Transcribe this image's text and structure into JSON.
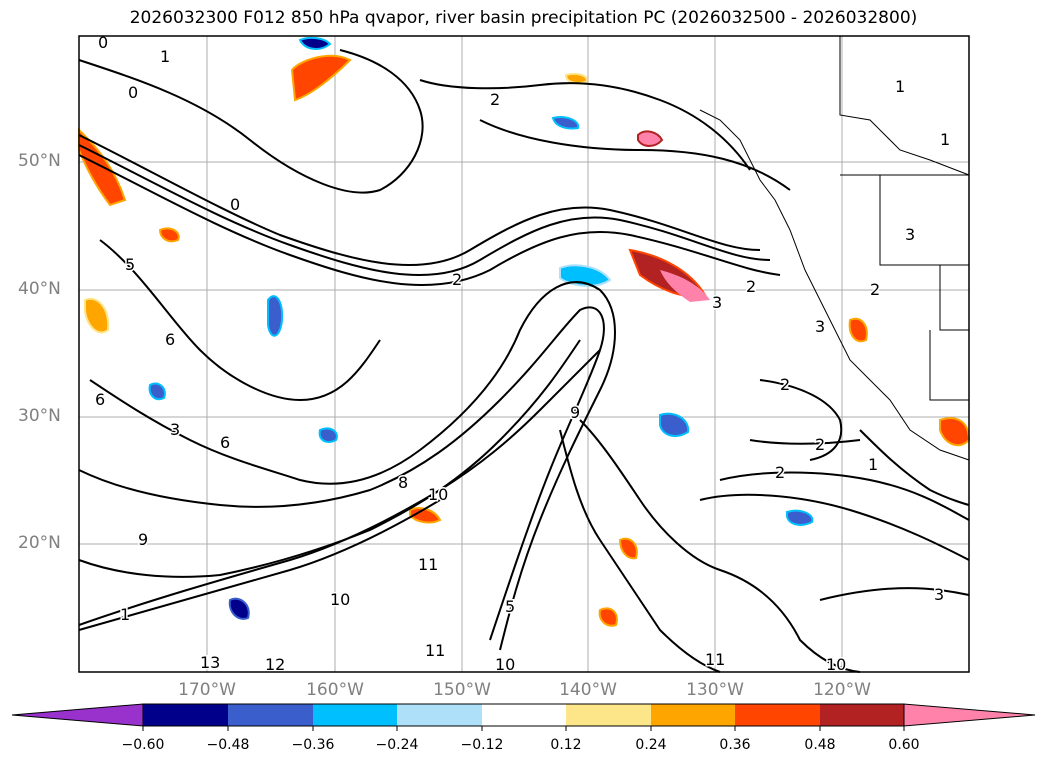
{
  "title": "2026032300 F012 850 hPa qvapor, river basin precipitation PC (2026032500 - 2026032800)",
  "latitude_labels": [
    "50°N",
    "40°N",
    "30°N",
    "20°N"
  ],
  "longitude_labels": [
    "170°W",
    "160°W",
    "150°W",
    "140°W",
    "130°W",
    "120°W"
  ],
  "contour_labels": [
    "0",
    "1",
    "0",
    "2",
    "1",
    "1",
    "0",
    "5",
    "6",
    "6",
    "3",
    "6",
    "8",
    "10",
    "9",
    "2",
    "2",
    "2",
    "2",
    "2",
    "3",
    "3",
    "3",
    "2",
    "1",
    "3",
    "9",
    "10",
    "11",
    "11",
    "11",
    "12",
    "13",
    "10",
    "10",
    "5",
    "1"
  ],
  "colorbar": {
    "ticks": [
      "−0.60",
      "−0.48",
      "−0.36",
      "−0.24",
      "−0.12",
      "0.12",
      "0.24",
      "0.36",
      "0.48",
      "0.60"
    ],
    "colors": [
      "#9932cc",
      "#00008b",
      "#3a5fcd",
      "#00bfff",
      "#aee0fa",
      "#ffffff",
      "#fde68a",
      "#ffa500",
      "#ff4500",
      "#b22222",
      "#ff82ab",
      "#ff82ab"
    ]
  }
}
